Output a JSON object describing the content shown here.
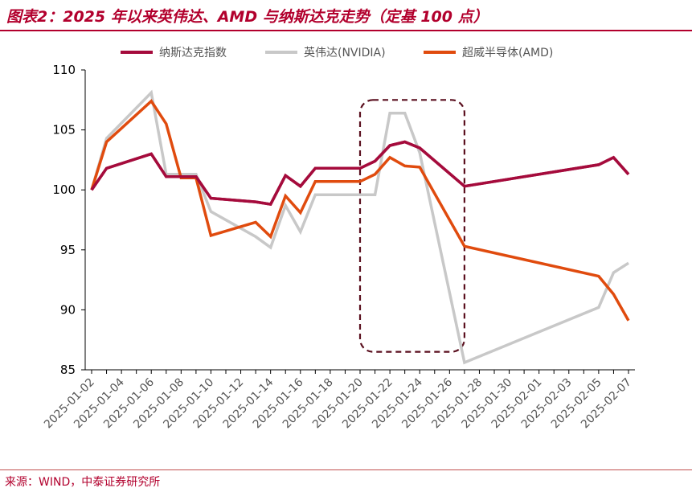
{
  "header": {
    "title": "图表2：2025 年以来英伟达、AMD 与纳斯达克走势（定基 100 点）"
  },
  "footer": {
    "source": "来源：WIND，中泰证券研究所"
  },
  "colors": {
    "title": "#b2002d",
    "nasdaq": "#a50b3c",
    "nvidia": "#c8c8c8",
    "amd": "#e04b0e",
    "highlight_box": "#5a0f1e"
  },
  "chart_data": {
    "type": "line",
    "title": "图表2：2025 年以来英伟达、AMD 与纳斯达克走势（定基 100 点）",
    "xlabel": "",
    "ylabel": "",
    "ylim": [
      85,
      110
    ],
    "yticks": [
      85,
      90,
      95,
      100,
      105,
      110
    ],
    "xlim": [
      "2025-01-02",
      "2025-02-07"
    ],
    "xticks": [
      "2025-01-02",
      "2025-01-04",
      "2025-01-06",
      "2025-01-08",
      "2025-01-10",
      "2025-01-12",
      "2025-01-14",
      "2025-01-16",
      "2025-01-18",
      "2025-01-20",
      "2025-01-22",
      "2025-01-24",
      "2025-01-26",
      "2025-01-28",
      "2025-01-30",
      "2025-02-01",
      "2025-02-03",
      "2025-02-05",
      "2025-02-07"
    ],
    "legend_position": "top",
    "grid": false,
    "annotation": {
      "type": "dashed-rounded-box",
      "x_range": [
        "2025-01-20",
        "2025-01-27"
      ],
      "y_range": [
        86.5,
        107.5
      ]
    },
    "series": [
      {
        "name": "纳斯达克指数",
        "color": "#a50b3c",
        "points": [
          [
            "2025-01-02",
            100.0
          ],
          [
            "2025-01-03",
            101.8
          ],
          [
            "2025-01-06",
            103.0
          ],
          [
            "2025-01-07",
            101.1
          ],
          [
            "2025-01-08",
            101.1
          ],
          [
            "2025-01-09",
            101.1
          ],
          [
            "2025-01-10",
            99.3
          ],
          [
            "2025-01-13",
            99.0
          ],
          [
            "2025-01-14",
            98.8
          ],
          [
            "2025-01-15",
            101.2
          ],
          [
            "2025-01-16",
            100.3
          ],
          [
            "2025-01-17",
            101.8
          ],
          [
            "2025-01-20",
            101.8
          ],
          [
            "2025-01-21",
            102.4
          ],
          [
            "2025-01-22",
            103.7
          ],
          [
            "2025-01-23",
            104.0
          ],
          [
            "2025-01-24",
            103.5
          ],
          [
            "2025-01-27",
            100.3
          ],
          [
            "2025-02-05",
            102.1
          ],
          [
            "2025-02-06",
            102.7
          ],
          [
            "2025-02-07",
            101.3
          ]
        ]
      },
      {
        "name": "英伟达(NVIDIA)",
        "color": "#c8c8c8",
        "points": [
          [
            "2025-01-02",
            100.0
          ],
          [
            "2025-01-03",
            104.3
          ],
          [
            "2025-01-06",
            108.1
          ],
          [
            "2025-01-07",
            101.3
          ],
          [
            "2025-01-08",
            101.3
          ],
          [
            "2025-01-09",
            101.3
          ],
          [
            "2025-01-10",
            98.2
          ],
          [
            "2025-01-13",
            96.1
          ],
          [
            "2025-01-14",
            95.2
          ],
          [
            "2025-01-15",
            98.7
          ],
          [
            "2025-01-16",
            96.5
          ],
          [
            "2025-01-17",
            99.6
          ],
          [
            "2025-01-20",
            99.6
          ],
          [
            "2025-01-21",
            99.6
          ],
          [
            "2025-01-22",
            106.4
          ],
          [
            "2025-01-23",
            106.4
          ],
          [
            "2025-01-24",
            103.1
          ],
          [
            "2025-01-27",
            85.6
          ],
          [
            "2025-02-05",
            90.2
          ],
          [
            "2025-02-06",
            93.1
          ],
          [
            "2025-02-07",
            93.9
          ]
        ]
      },
      {
        "name": "超威半导体(AMD)",
        "color": "#e04b0e",
        "points": [
          [
            "2025-01-02",
            100.0
          ],
          [
            "2025-01-03",
            104.0
          ],
          [
            "2025-01-06",
            107.4
          ],
          [
            "2025-01-07",
            105.5
          ],
          [
            "2025-01-08",
            101.0
          ],
          [
            "2025-01-09",
            101.0
          ],
          [
            "2025-01-10",
            96.2
          ],
          [
            "2025-01-13",
            97.3
          ],
          [
            "2025-01-14",
            96.1
          ],
          [
            "2025-01-15",
            99.5
          ],
          [
            "2025-01-16",
            98.1
          ],
          [
            "2025-01-17",
            100.7
          ],
          [
            "2025-01-20",
            100.7
          ],
          [
            "2025-01-21",
            101.3
          ],
          [
            "2025-01-22",
            102.7
          ],
          [
            "2025-01-23",
            102.0
          ],
          [
            "2025-01-24",
            101.9
          ],
          [
            "2025-01-27",
            95.3
          ],
          [
            "2025-02-05",
            92.8
          ],
          [
            "2025-02-06",
            91.3
          ],
          [
            "2025-02-07",
            89.1
          ]
        ]
      }
    ]
  }
}
